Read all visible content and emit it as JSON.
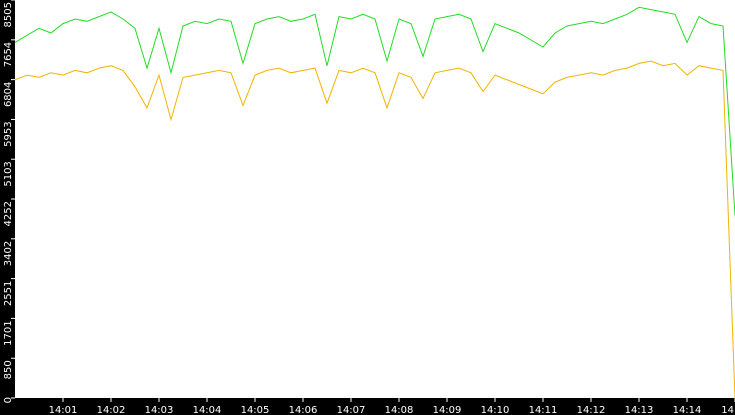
{
  "chart_data": {
    "type": "line",
    "x": [
      0,
      0.25,
      0.5,
      0.75,
      1,
      1.25,
      1.5,
      1.75,
      2,
      2.25,
      2.5,
      2.75,
      3,
      3.25,
      3.5,
      3.75,
      4,
      4.25,
      4.5,
      4.75,
      5,
      5.25,
      5.5,
      5.75,
      6,
      6.25,
      6.5,
      6.75,
      7,
      7.25,
      7.5,
      7.75,
      8,
      8.25,
      8.5,
      8.75,
      9,
      9.25,
      9.5,
      9.75,
      10,
      10.25,
      10.5,
      10.75,
      11,
      11.25,
      11.5,
      11.75,
      12,
      12.25,
      12.5,
      12.75,
      13,
      13.25,
      13.5,
      13.75,
      14,
      14.25,
      14.5,
      14.75,
      15
    ],
    "series": [
      {
        "color": "#22dd22",
        "values": [
          7600,
          7750,
          7900,
          7800,
          8000,
          8100,
          8050,
          8150,
          8250,
          8100,
          7900,
          7050,
          7900,
          6950,
          7950,
          8050,
          8000,
          8100,
          8050,
          7150,
          8000,
          8100,
          8150,
          8050,
          8100,
          8200,
          7100,
          8150,
          8100,
          8200,
          8100,
          7200,
          8100,
          8000,
          7300,
          8100,
          8150,
          8200,
          8100,
          7400,
          8000,
          7900,
          7800,
          7650,
          7500,
          7800,
          7950,
          8000,
          8050,
          8000,
          8100,
          8200,
          8350,
          8300,
          8250,
          8200,
          7600,
          8150,
          8000,
          7950,
          3900
        ]
      },
      {
        "color": "#f0b400",
        "values": [
          6800,
          6900,
          6850,
          6950,
          6900,
          7000,
          6950,
          7050,
          7100,
          7000,
          6650,
          6200,
          6900,
          5950,
          6850,
          6900,
          6950,
          7000,
          6950,
          6250,
          6900,
          7000,
          7050,
          6950,
          7000,
          7050,
          6300,
          7000,
          6950,
          7050,
          6950,
          6200,
          6950,
          6850,
          6400,
          6950,
          7000,
          7050,
          6950,
          6550,
          6900,
          6800,
          6700,
          6600,
          6500,
          6750,
          6850,
          6900,
          6950,
          6900,
          7000,
          7050,
          7150,
          7200,
          7100,
          7150,
          6900,
          7100,
          7050,
          7000,
          0
        ]
      }
    ],
    "xlim": [
      0,
      15
    ],
    "xticks": [
      {
        "value": 1,
        "label": "14:01"
      },
      {
        "value": 2,
        "label": "14:02"
      },
      {
        "value": 3,
        "label": "14:03"
      },
      {
        "value": 4,
        "label": "14:04"
      },
      {
        "value": 5,
        "label": "14:05"
      },
      {
        "value": 6,
        "label": "14:06"
      },
      {
        "value": 7,
        "label": "14:07"
      },
      {
        "value": 8,
        "label": "14:08"
      },
      {
        "value": 9,
        "label": "14:09"
      },
      {
        "value": 10,
        "label": "14:10"
      },
      {
        "value": 11,
        "label": "14:11"
      },
      {
        "value": 12,
        "label": "14:12"
      },
      {
        "value": 13,
        "label": "14:13"
      },
      {
        "value": 14,
        "label": "14:14"
      },
      {
        "value": 15,
        "label": "14"
      }
    ],
    "ylim": [
      0,
      8505
    ],
    "yticks": [
      0,
      850,
      1701,
      2551,
      3402,
      4252,
      5103,
      5953,
      6804,
      7654,
      8505
    ]
  }
}
